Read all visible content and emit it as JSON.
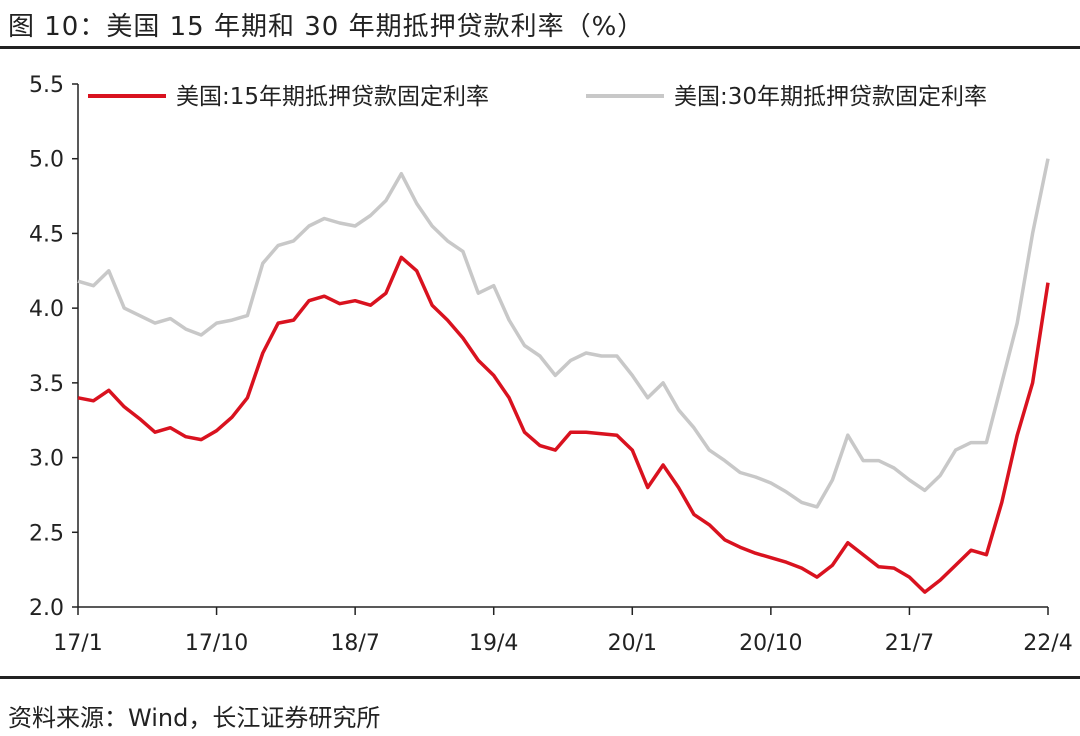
{
  "header": {
    "title": "图 10：美国 15 年期和 30 年期抵押贷款利率（%）"
  },
  "footer": {
    "source": "资料来源：Wind，长江证券研究所"
  },
  "colors": {
    "series_15y": "#d9121f",
    "series_30y": "#c8c8c8",
    "axis": "#222222"
  },
  "chart_data": {
    "type": "line",
    "ylim": [
      2.0,
      5.5
    ],
    "yticks": [
      "5.5",
      "5.0",
      "4.5",
      "4.0",
      "3.5",
      "3.0",
      "2.5",
      "2.0"
    ],
    "xticks": [
      "17/1",
      "17/10",
      "18/7",
      "19/4",
      "20/1",
      "20/10",
      "21/7",
      "22/4"
    ],
    "legend_position": "top",
    "grid": false,
    "x": [
      "17/1",
      "17/2",
      "17/3",
      "17/4",
      "17/5",
      "17/6",
      "17/7",
      "17/8",
      "17/9",
      "17/10",
      "17/11",
      "17/12",
      "18/1",
      "18/2",
      "18/3",
      "18/4",
      "18/5",
      "18/6",
      "18/7",
      "18/8",
      "18/9",
      "18/10",
      "18/11",
      "18/12",
      "19/1",
      "19/2",
      "19/3",
      "19/4",
      "19/5",
      "19/6",
      "19/7",
      "19/8",
      "19/9",
      "19/10",
      "19/11",
      "19/12",
      "20/1",
      "20/2",
      "20/3",
      "20/4",
      "20/5",
      "20/6",
      "20/7",
      "20/8",
      "20/9",
      "20/10",
      "20/11",
      "20/12",
      "21/1",
      "21/2",
      "21/3",
      "21/4",
      "21/5",
      "21/6",
      "21/7",
      "21/8",
      "21/9",
      "21/10",
      "21/11",
      "21/12",
      "22/1",
      "22/2",
      "22/3",
      "22/4"
    ],
    "series": [
      {
        "name": "美国:15年期抵押贷款固定利率",
        "values": [
          3.4,
          3.38,
          3.45,
          3.34,
          3.26,
          3.17,
          3.2,
          3.14,
          3.12,
          3.18,
          3.27,
          3.4,
          3.7,
          3.9,
          3.92,
          4.05,
          4.08,
          4.03,
          4.05,
          4.02,
          4.1,
          4.34,
          4.25,
          4.02,
          3.92,
          3.8,
          3.65,
          3.55,
          3.4,
          3.17,
          3.08,
          3.05,
          3.17,
          3.17,
          3.16,
          3.15,
          3.05,
          2.8,
          2.95,
          2.8,
          2.62,
          2.55,
          2.45,
          2.4,
          2.36,
          2.33,
          2.3,
          2.26,
          2.2,
          2.28,
          2.43,
          2.35,
          2.27,
          2.26,
          2.2,
          2.1,
          2.18,
          2.28,
          2.38,
          2.35,
          2.7,
          3.15,
          3.5,
          4.17
        ]
      },
      {
        "name": "美国:30年期抵押贷款固定利率",
        "values": [
          4.18,
          4.15,
          4.25,
          4.0,
          3.95,
          3.9,
          3.93,
          3.86,
          3.82,
          3.9,
          3.92,
          3.95,
          4.3,
          4.42,
          4.45,
          4.55,
          4.6,
          4.57,
          4.55,
          4.62,
          4.72,
          4.9,
          4.7,
          4.55,
          4.45,
          4.38,
          4.1,
          4.15,
          3.92,
          3.75,
          3.68,
          3.55,
          3.65,
          3.7,
          3.68,
          3.68,
          3.55,
          3.4,
          3.5,
          3.32,
          3.2,
          3.05,
          2.98,
          2.9,
          2.87,
          2.83,
          2.77,
          2.7,
          2.67,
          2.85,
          3.15,
          2.98,
          2.98,
          2.93,
          2.85,
          2.78,
          2.88,
          3.05,
          3.1,
          3.1,
          3.5,
          3.9,
          4.5,
          5.0
        ]
      }
    ]
  }
}
